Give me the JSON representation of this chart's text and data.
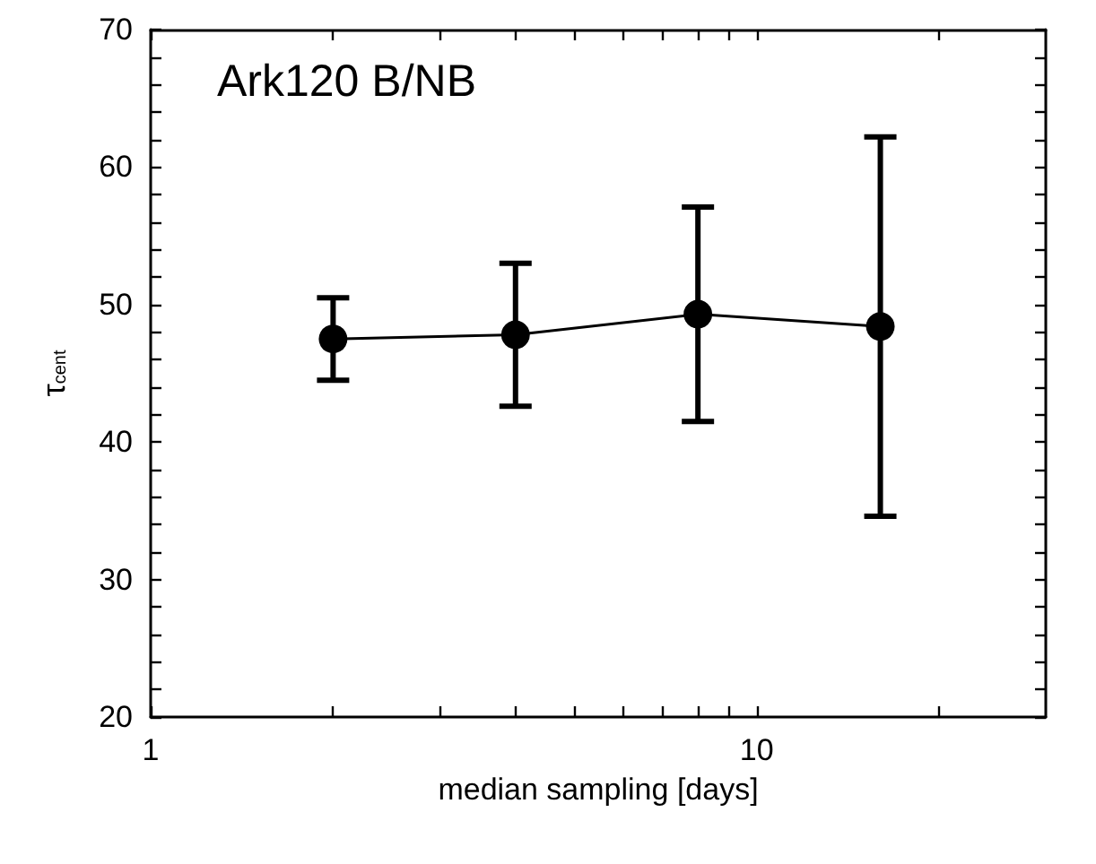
{
  "chart_data": {
    "type": "line",
    "title": "Ark120 B/NB",
    "xlabel": "median sampling [days]",
    "ylabel": "τ$_{cent}$",
    "x": [
      2,
      4,
      8,
      16
    ],
    "series": [
      {
        "color": "#000000",
        "values": [
          47.5,
          47.8,
          49.3,
          48.4
        ],
        "errors": [
          [
            44.5,
            50.5
          ],
          [
            42.6,
            53.0
          ],
          [
            41.5,
            57.1
          ],
          [
            34.6,
            62.2
          ]
        ]
      }
    ],
    "log": "x",
    "xlim": [
      1,
      30
    ],
    "xticks": [
      1,
      {
        "value": 2,
        "label": null
      },
      {
        "value": 3,
        "label": null
      },
      {
        "value": 4,
        "label": null
      },
      {
        "value": 5,
        "label": null
      },
      {
        "value": 6,
        "label": null
      },
      {
        "value": 7,
        "label": null
      },
      {
        "value": 8,
        "label": null
      },
      {
        "value": 9,
        "label": null
      },
      10,
      {
        "value": 20,
        "label": null
      }
    ],
    "ylim": [
      20,
      70
    ],
    "yticks": [
      20,
      {
        "value": 22,
        "label": null
      },
      {
        "value": 24,
        "label": null
      },
      {
        "value": 26,
        "label": null
      },
      {
        "value": 28,
        "label": null
      },
      30,
      {
        "value": 32,
        "label": null
      },
      {
        "value": 34,
        "label": null
      },
      {
        "value": 36,
        "label": null
      },
      {
        "value": 38,
        "label": null
      },
      40,
      {
        "value": 42,
        "label": null
      },
      {
        "value": 44,
        "label": null
      },
      {
        "value": 46,
        "label": null
      },
      {
        "value": 48,
        "label": null
      },
      50,
      {
        "value": 52,
        "label": null
      },
      {
        "value": 54,
        "label": null
      },
      {
        "value": 56,
        "label": null
      },
      {
        "value": 58,
        "label": null
      },
      60,
      {
        "value": 62,
        "label": null
      },
      {
        "value": 64,
        "label": null
      },
      {
        "value": 66,
        "label": null
      },
      {
        "value": 68,
        "label": null
      },
      70
    ],
    "marker": "circle",
    "line_style": "solid",
    "grid": false
  }
}
